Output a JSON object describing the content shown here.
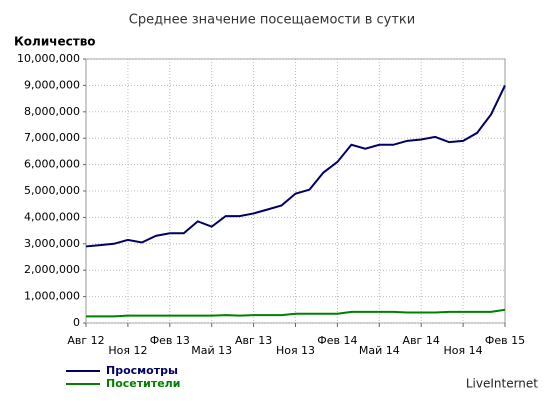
{
  "chart_data": {
    "type": "line",
    "title": "Среднее значение посещаемости в сутки",
    "y_label": "Количество",
    "footer": "LiveInternet",
    "categories": [
      "Авг 12",
      null,
      null,
      "Ноя 12",
      null,
      null,
      "Фев 13",
      null,
      null,
      "Май 13",
      null,
      null,
      "Авг 13",
      null,
      null,
      "Ноя 13",
      null,
      null,
      "Фев 14",
      null,
      null,
      "Май 14",
      null,
      null,
      "Авг 14",
      null,
      null,
      "Ноя 14",
      null,
      null,
      "Фев 15"
    ],
    "series": [
      {
        "name": "Просмотры",
        "color": "#000066",
        "values": [
          2900000,
          2950000,
          3000000,
          3150000,
          3050000,
          3300000,
          3400000,
          3400000,
          3850000,
          3650000,
          4050000,
          4050000,
          4150000,
          4300000,
          4450000,
          4900000,
          5050000,
          5700000,
          6100000,
          6750000,
          6600000,
          6750000,
          6750000,
          6900000,
          6950000,
          7050000,
          6850000,
          6900000,
          7200000,
          7900000,
          9000000
        ]
      },
      {
        "name": "Посетители",
        "color": "#008000",
        "values": [
          250000,
          250000,
          250000,
          280000,
          280000,
          280000,
          280000,
          280000,
          280000,
          280000,
          300000,
          280000,
          300000,
          300000,
          300000,
          350000,
          350000,
          350000,
          350000,
          420000,
          420000,
          420000,
          420000,
          400000,
          400000,
          400000,
          420000,
          420000,
          420000,
          420000,
          500000
        ]
      }
    ],
    "ylim": [
      0,
      10000000
    ],
    "yticks": [
      0,
      {
        "value": 1000000,
        "label": "1,000,000"
      },
      {
        "value": 2000000,
        "label": "2,000,000"
      },
      {
        "value": 3000000,
        "label": "3,000,000"
      },
      {
        "value": 4000000,
        "label": "4,000,000"
      },
      {
        "value": 5000000,
        "label": "5,000,000"
      },
      {
        "value": 6000000,
        "label": "6,000,000"
      },
      {
        "value": 7000000,
        "label": "7,000,000"
      },
      {
        "value": 8000000,
        "label": "8,000,000"
      },
      {
        "value": 9000000,
        "label": "9,000,000"
      },
      {
        "value": 10000000,
        "label": "10,000,000"
      }
    ],
    "grid": true
  }
}
